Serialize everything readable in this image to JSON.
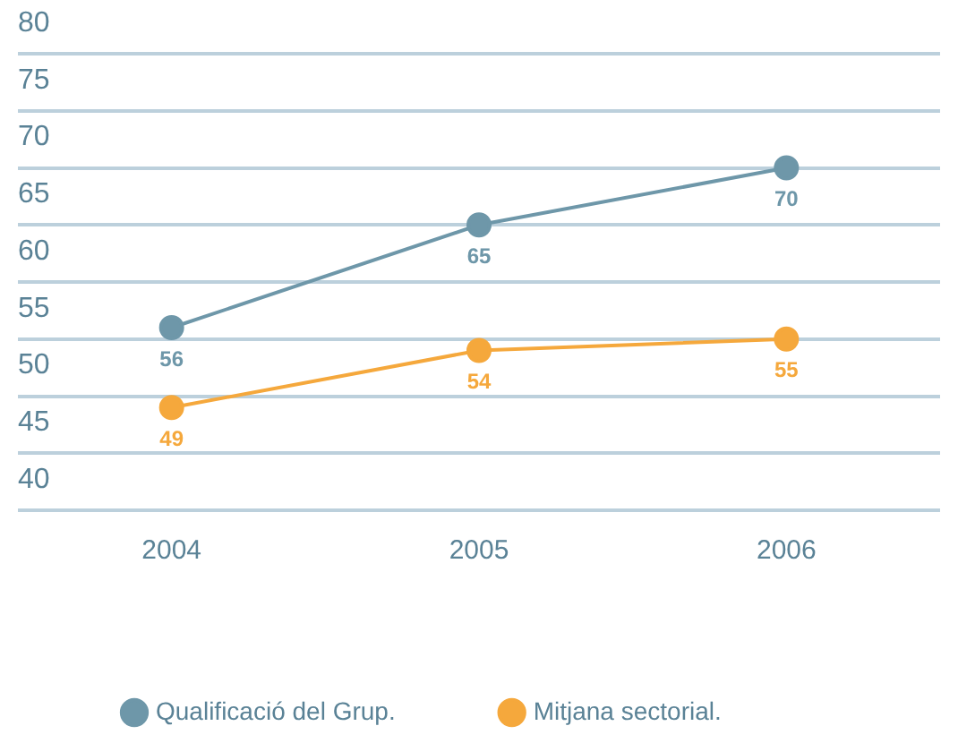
{
  "chart_data": {
    "type": "line",
    "categories": [
      "2004",
      "2005",
      "2006"
    ],
    "series": [
      {
        "name": "Qualificació del Grup.",
        "color": "#6e97a9",
        "values": [
          56,
          65,
          70
        ]
      },
      {
        "name": "Mitjana sectorial.",
        "color": "#f5a83c",
        "values": [
          49,
          54,
          55
        ]
      }
    ],
    "ylim": [
      40,
      80
    ],
    "yticks": [
      40,
      45,
      50,
      55,
      60,
      65,
      70,
      75,
      80
    ],
    "grid": "y",
    "legend": "bottom",
    "marker": "circle",
    "line_style": "solid",
    "data_labels": true
  }
}
